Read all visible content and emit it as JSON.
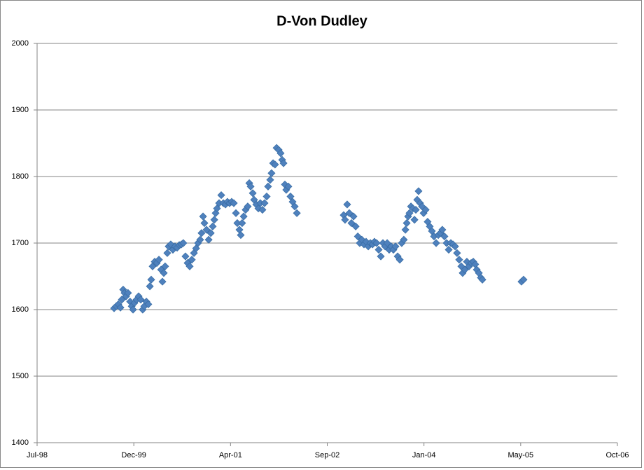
{
  "chart_data": {
    "type": "scatter",
    "title": "D-Von Dudley",
    "color": "#4f81bd",
    "grid": true,
    "xlim": [
      36000,
      39000
    ],
    "xticks": [
      {
        "value": 36000,
        "label": "Jul-98"
      },
      {
        "value": 36500,
        "label": "Dec-99"
      },
      {
        "value": 37000,
        "label": "Apr-01"
      },
      {
        "value": 37500,
        "label": "Sep-02"
      },
      {
        "value": 38000,
        "label": "Jan-04"
      },
      {
        "value": 38500,
        "label": "May-05"
      },
      {
        "value": 39000,
        "label": "Oct-06"
      }
    ],
    "ylim": [
      1400,
      2000
    ],
    "yticks": [
      1400,
      1500,
      1600,
      1700,
      1800,
      1900,
      2000
    ],
    "x": [
      36398,
      36409,
      36420,
      36431,
      36438,
      36445,
      36452,
      36460,
      36470,
      36481,
      36489,
      36496,
      36503,
      36514,
      36525,
      36536,
      36546,
      36554,
      36565,
      36575,
      36583,
      36590,
      36597,
      36608,
      36619,
      36630,
      36641,
      36648,
      36655,
      36662,
      36673,
      36680,
      36691,
      36702,
      36713,
      36724,
      36735,
      36746,
      36756,
      36767,
      36778,
      36789,
      36800,
      36811,
      36822,
      36832,
      36843,
      36850,
      36858,
      36865,
      36876,
      36887,
      36898,
      36908,
      36916,
      36923,
      36930,
      36941,
      36952,
      36963,
      36974,
      36984,
      36995,
      37006,
      37017,
      37028,
      37035,
      37046,
      37053,
      37060,
      37068,
      37078,
      37089,
      37097,
      37104,
      37115,
      37122,
      37133,
      37144,
      37154,
      37165,
      37176,
      37187,
      37194,
      37205,
      37212,
      37220,
      37230,
      37238,
      37249,
      37259,
      37267,
      37274,
      37281,
      37288,
      37299,
      37310,
      37321,
      37332,
      37343,
      37585,
      37592,
      37603,
      37614,
      37625,
      37636,
      37647,
      37658,
      37668,
      37679,
      37690,
      37701,
      37712,
      37723,
      37734,
      37744,
      37755,
      37766,
      37777,
      37788,
      37799,
      37810,
      37820,
      37831,
      37842,
      37853,
      37864,
      37875,
      37885,
      37896,
      37904,
      37911,
      37918,
      37925,
      37933,
      37943,
      37951,
      37958,
      37965,
      37972,
      37980,
      37990,
      37998,
      38009,
      38019,
      38030,
      38041,
      38052,
      38063,
      38074,
      38085,
      38095,
      38106,
      38117,
      38128,
      38139,
      38150,
      38161,
      38171,
      38182,
      38193,
      38200,
      38211,
      38222,
      38233,
      38244,
      38255,
      38265,
      38273,
      38284,
      38294,
      38302,
      38504,
      38515
    ],
    "values": [
      1602,
      1605,
      1608,
      1603,
      1615,
      1630,
      1625,
      1620,
      1625,
      1612,
      1605,
      1600,
      1610,
      1615,
      1620,
      1615,
      1600,
      1605,
      1612,
      1608,
      1635,
      1645,
      1665,
      1672,
      1670,
      1675,
      1660,
      1642,
      1655,
      1665,
      1685,
      1695,
      1698,
      1690,
      1695,
      1693,
      1697,
      1698,
      1700,
      1680,
      1670,
      1665,
      1675,
      1685,
      1692,
      1700,
      1705,
      1715,
      1740,
      1730,
      1720,
      1705,
      1715,
      1725,
      1735,
      1745,
      1752,
      1760,
      1772,
      1760,
      1758,
      1762,
      1760,
      1762,
      1760,
      1745,
      1730,
      1720,
      1712,
      1730,
      1740,
      1750,
      1755,
      1790,
      1785,
      1775,
      1765,
      1758,
      1752,
      1760,
      1750,
      1760,
      1770,
      1785,
      1795,
      1805,
      1820,
      1818,
      1843,
      1840,
      1835,
      1825,
      1820,
      1788,
      1780,
      1785,
      1770,
      1762,
      1755,
      1745,
      1742,
      1735,
      1758,
      1745,
      1730,
      1740,
      1725,
      1710,
      1700,
      1705,
      1698,
      1702,
      1695,
      1700,
      1698,
      1702,
      1700,
      1690,
      1680,
      1700,
      1695,
      1700,
      1690,
      1695,
      1690,
      1695,
      1680,
      1675,
      1700,
      1705,
      1720,
      1730,
      1740,
      1745,
      1755,
      1752,
      1735,
      1750,
      1765,
      1778,
      1760,
      1755,
      1745,
      1750,
      1732,
      1725,
      1718,
      1710,
      1700,
      1712,
      1715,
      1720,
      1710,
      1700,
      1690,
      1700,
      1698,
      1695,
      1685,
      1675,
      1665,
      1655,
      1660,
      1672,
      1665,
      1670,
      1672,
      1668,
      1660,
      1655,
      1648,
      1645,
      1642,
      1645
    ]
  }
}
